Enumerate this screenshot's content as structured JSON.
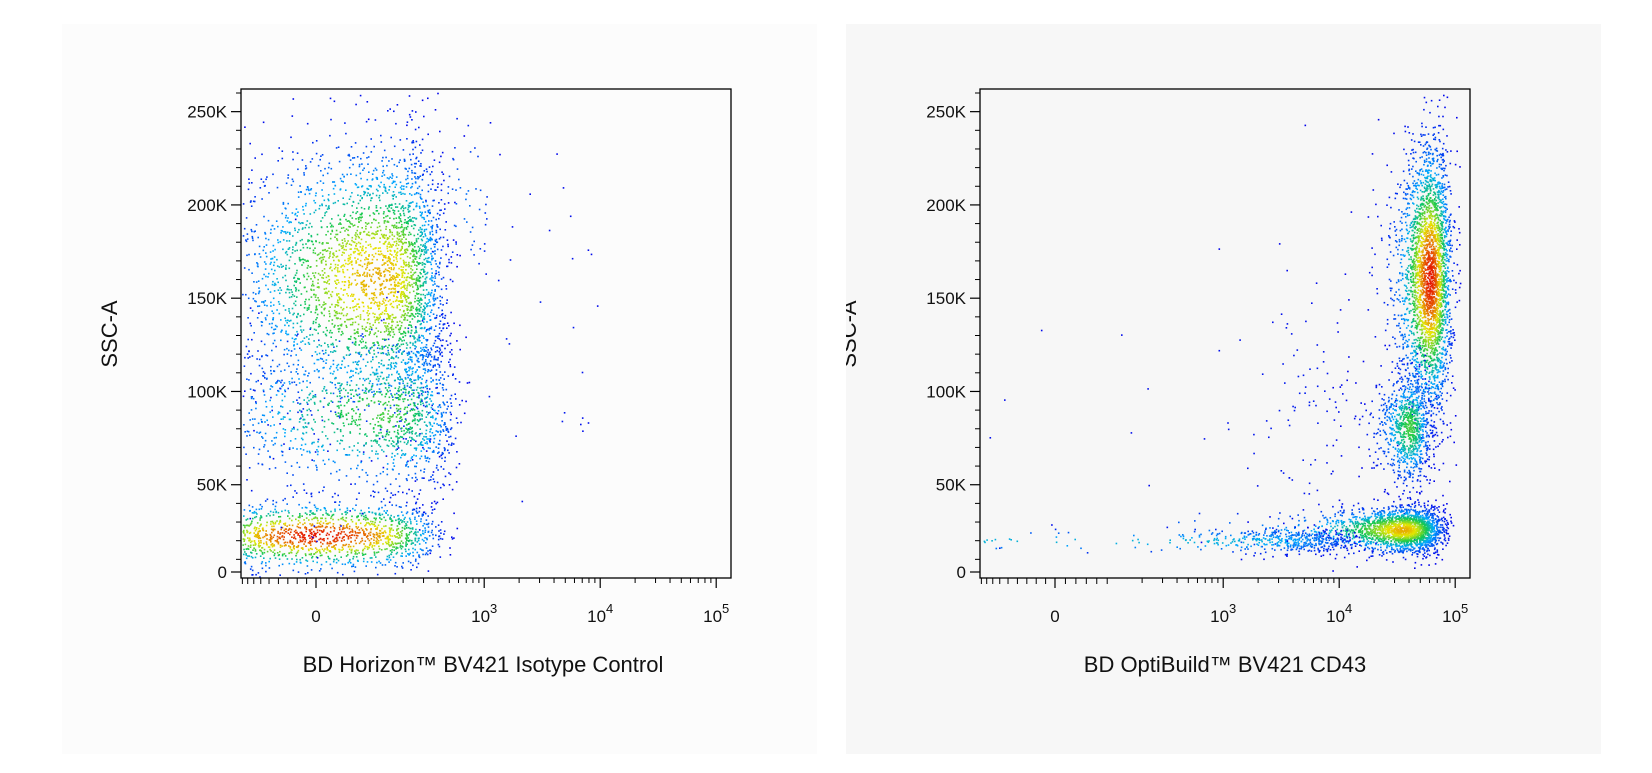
{
  "chart_data": [
    {
      "type": "scatter",
      "xlabel": "BD Horizon™ BV421 Isotype Control",
      "ylabel": "SSC-A",
      "x_scale": "biexponential",
      "x_ticks": [
        {
          "value": 0,
          "base": "0",
          "exp": ""
        },
        {
          "value": 1000,
          "base": "10",
          "exp": "3"
        },
        {
          "value": 10000,
          "base": "10",
          "exp": "4"
        },
        {
          "value": 100000,
          "base": "10",
          "exp": "5"
        }
      ],
      "y_ticks": [
        {
          "value": 0,
          "label": "0"
        },
        {
          "value": 50000,
          "label": "50K"
        },
        {
          "value": 100000,
          "label": "100K"
        },
        {
          "value": 150000,
          "label": "150K"
        },
        {
          "value": 200000,
          "label": "200K"
        },
        {
          "value": 250000,
          "label": "250K"
        }
      ],
      "ylim": [
        0,
        262144
      ],
      "color_scale": "density (blue-green-yellow-red)",
      "populations": [
        {
          "x_center": 0,
          "y_center": 22000,
          "x_spread": 180,
          "y_spread": 9000,
          "density": "very high",
          "count": 1600
        },
        {
          "x_center": 120,
          "y_center": 160000,
          "x_spread": 150,
          "y_spread": 35000,
          "density": "high",
          "count": 3200
        },
        {
          "x_center": 140,
          "y_center": 88000,
          "x_spread": 200,
          "y_spread": 22000,
          "density": "medium",
          "count": 1300
        },
        {
          "x_center": 700,
          "y_center": 200000,
          "x_spread": 250,
          "y_spread": 25000,
          "density": "sparse",
          "count": 60
        },
        {
          "x_center": 3000,
          "y_center": 120000,
          "x_spread": 4000,
          "y_spread": 60000,
          "density": "rare",
          "count": 40
        }
      ]
    },
    {
      "type": "scatter",
      "xlabel": "BD OptiBuild™ BV421 CD43",
      "ylabel": "SSC-A",
      "x_scale": "biexponential",
      "x_ticks": [
        {
          "value": 0,
          "base": "0",
          "exp": ""
        },
        {
          "value": 1000,
          "base": "10",
          "exp": "3"
        },
        {
          "value": 10000,
          "base": "10",
          "exp": "4"
        },
        {
          "value": 100000,
          "base": "10",
          "exp": "5"
        }
      ],
      "y_ticks": [
        {
          "value": 0,
          "label": "0"
        },
        {
          "value": 50000,
          "label": "50K"
        },
        {
          "value": 100000,
          "label": "100K"
        },
        {
          "value": 150000,
          "label": "150K"
        },
        {
          "value": 200000,
          "label": "200K"
        },
        {
          "value": 250000,
          "label": "250K"
        }
      ],
      "ylim": [
        0,
        262144
      ],
      "color_scale": "density (blue-green-yellow-red)",
      "populations": [
        {
          "x_center": 60000,
          "y_center": 160000,
          "x_spread": 15000,
          "y_spread": 35000,
          "density": "very high",
          "count": 3000
        },
        {
          "x_center": 40000,
          "y_center": 80000,
          "x_spread": 10000,
          "y_spread": 15000,
          "density": "medium",
          "count": 900
        },
        {
          "x_center": 35000,
          "y_center": 25000,
          "x_spread": 20000,
          "y_spread": 6000,
          "density": "high",
          "count": 2200
        },
        {
          "x_center": 300,
          "y_center": 19000,
          "x_spread": 6000,
          "y_spread": 3500,
          "density": "low",
          "count": 900
        },
        {
          "x_center": 5000,
          "y_center": 90000,
          "x_spread": 4000,
          "y_spread": 45000,
          "density": "rare",
          "count": 120
        }
      ]
    }
  ]
}
